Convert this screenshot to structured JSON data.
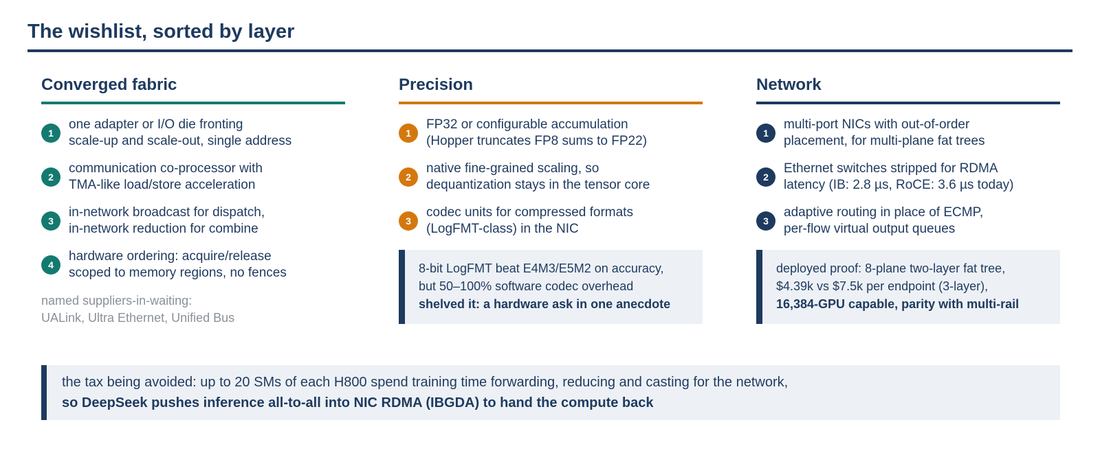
{
  "header": {
    "title": "The wishlist, sorted by layer"
  },
  "colors": {
    "teal": "#147a70",
    "orange": "#d4780e",
    "navy": "#1e3a5f",
    "muted": "#8a9099",
    "callout_bg": "#edf1f5"
  },
  "columns": [
    {
      "heading": "Converged fabric",
      "items": [
        {
          "num": "1",
          "line1": "one adapter or I/O die fronting",
          "line2": "scale-up and scale-out, single address"
        },
        {
          "num": "2",
          "line1": "communication co-processor with",
          "line2": "TMA-like load/store acceleration"
        },
        {
          "num": "3",
          "line1": "in-network broadcast for dispatch,",
          "line2": "in-network reduction for combine"
        },
        {
          "num": "4",
          "line1": "hardware ordering: acquire/release",
          "line2": "scoped to memory regions, no fences"
        }
      ],
      "note": {
        "line1": "named suppliers-in-waiting:",
        "line2": "UALink, Ultra Ethernet, Unified Bus"
      }
    },
    {
      "heading": "Precision",
      "items": [
        {
          "num": "1",
          "line1": "FP32 or configurable accumulation",
          "line2": "(Hopper truncates FP8 sums to FP22)"
        },
        {
          "num": "2",
          "line1": "native fine-grained scaling, so",
          "line2": "dequantization stays in the tensor core"
        },
        {
          "num": "3",
          "line1": "codec units for compressed formats",
          "line2": "(LogFMT-class) in the NIC"
        }
      ],
      "callout": {
        "line1": "8-bit LogFMT beat E4M3/E5M2 on accuracy,",
        "line2": "but 50–100% software codec overhead",
        "line3": "shelved it: a hardware ask in one anecdote"
      }
    },
    {
      "heading": "Network",
      "items": [
        {
          "num": "1",
          "line1": "multi-port NICs with out-of-order",
          "line2": "placement, for multi-plane fat trees"
        },
        {
          "num": "2",
          "line1": "Ethernet switches stripped for RDMA",
          "line2": "latency (IB: 2.8 µs, RoCE: 3.6 µs today)"
        },
        {
          "num": "3",
          "line1": "adaptive routing in place of ECMP,",
          "line2": "per-flow virtual output queues"
        }
      ],
      "callout": {
        "line1": "deployed proof: 8-plane two-layer fat tree,",
        "line2": "$4.39k vs $7.5k per endpoint (3-layer),",
        "line3": "16,384-GPU capable, parity with multi-rail"
      }
    }
  ],
  "banner": {
    "line1": "the tax being avoided: up to 20 SMs of each H800 spend training time forwarding, reducing and casting for the network,",
    "line2": "so DeepSeek pushes inference all-to-all into NIC RDMA (IBGDA) to hand the compute back"
  }
}
